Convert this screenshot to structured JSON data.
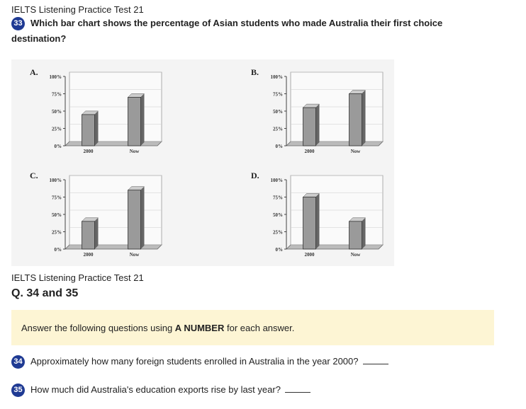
{
  "header": {
    "test_title": "IELTS Listening Practice Test 21",
    "q33_number": "33",
    "q33_text": "Which bar chart shows the percentage of Asian students who made Australia their first choice destination?"
  },
  "chart_data": [
    {
      "type": "bar",
      "label": "A.",
      "categories": [
        "2000",
        "Now"
      ],
      "values": [
        45,
        70
      ],
      "yticks": [
        "100%",
        "75%",
        "50%",
        "25%",
        "0%"
      ],
      "ylim": [
        0,
        100
      ]
    },
    {
      "type": "bar",
      "label": "B.",
      "categories": [
        "2000",
        "Now"
      ],
      "values": [
        55,
        75
      ],
      "yticks": [
        "100%",
        "75%",
        "50%",
        "25%",
        "0%"
      ],
      "ylim": [
        0,
        100
      ]
    },
    {
      "type": "bar",
      "label": "C.",
      "categories": [
        "2000",
        "Now"
      ],
      "values": [
        40,
        85
      ],
      "yticks": [
        "100%",
        "75%",
        "50%",
        "25%",
        "0%"
      ],
      "ylim": [
        0,
        100
      ]
    },
    {
      "type": "bar",
      "label": "D.",
      "categories": [
        "2000",
        "Now"
      ],
      "values": [
        75,
        40
      ],
      "yticks": [
        "100%",
        "75%",
        "50%",
        "25%",
        "0%"
      ],
      "ylim": [
        0,
        100
      ]
    }
  ],
  "section2": {
    "test_title": "IELTS Listening Practice Test 21",
    "heading": "Q. 34 and 35",
    "instruction_pre": "Answer the following questions using ",
    "instruction_bold": "A NUMBER",
    "instruction_post": " for each answer.",
    "q34_number": "34",
    "q34_text": "Approximately how many foreign students enrolled in Australia in the year 2000?",
    "q35_number": "35",
    "q35_text": "How much did Australia's education exports rise by last year?"
  },
  "colors": {
    "badge": "#1f3a93",
    "note_bg": "#fdf5d4",
    "bar": "#9a9a9a"
  }
}
